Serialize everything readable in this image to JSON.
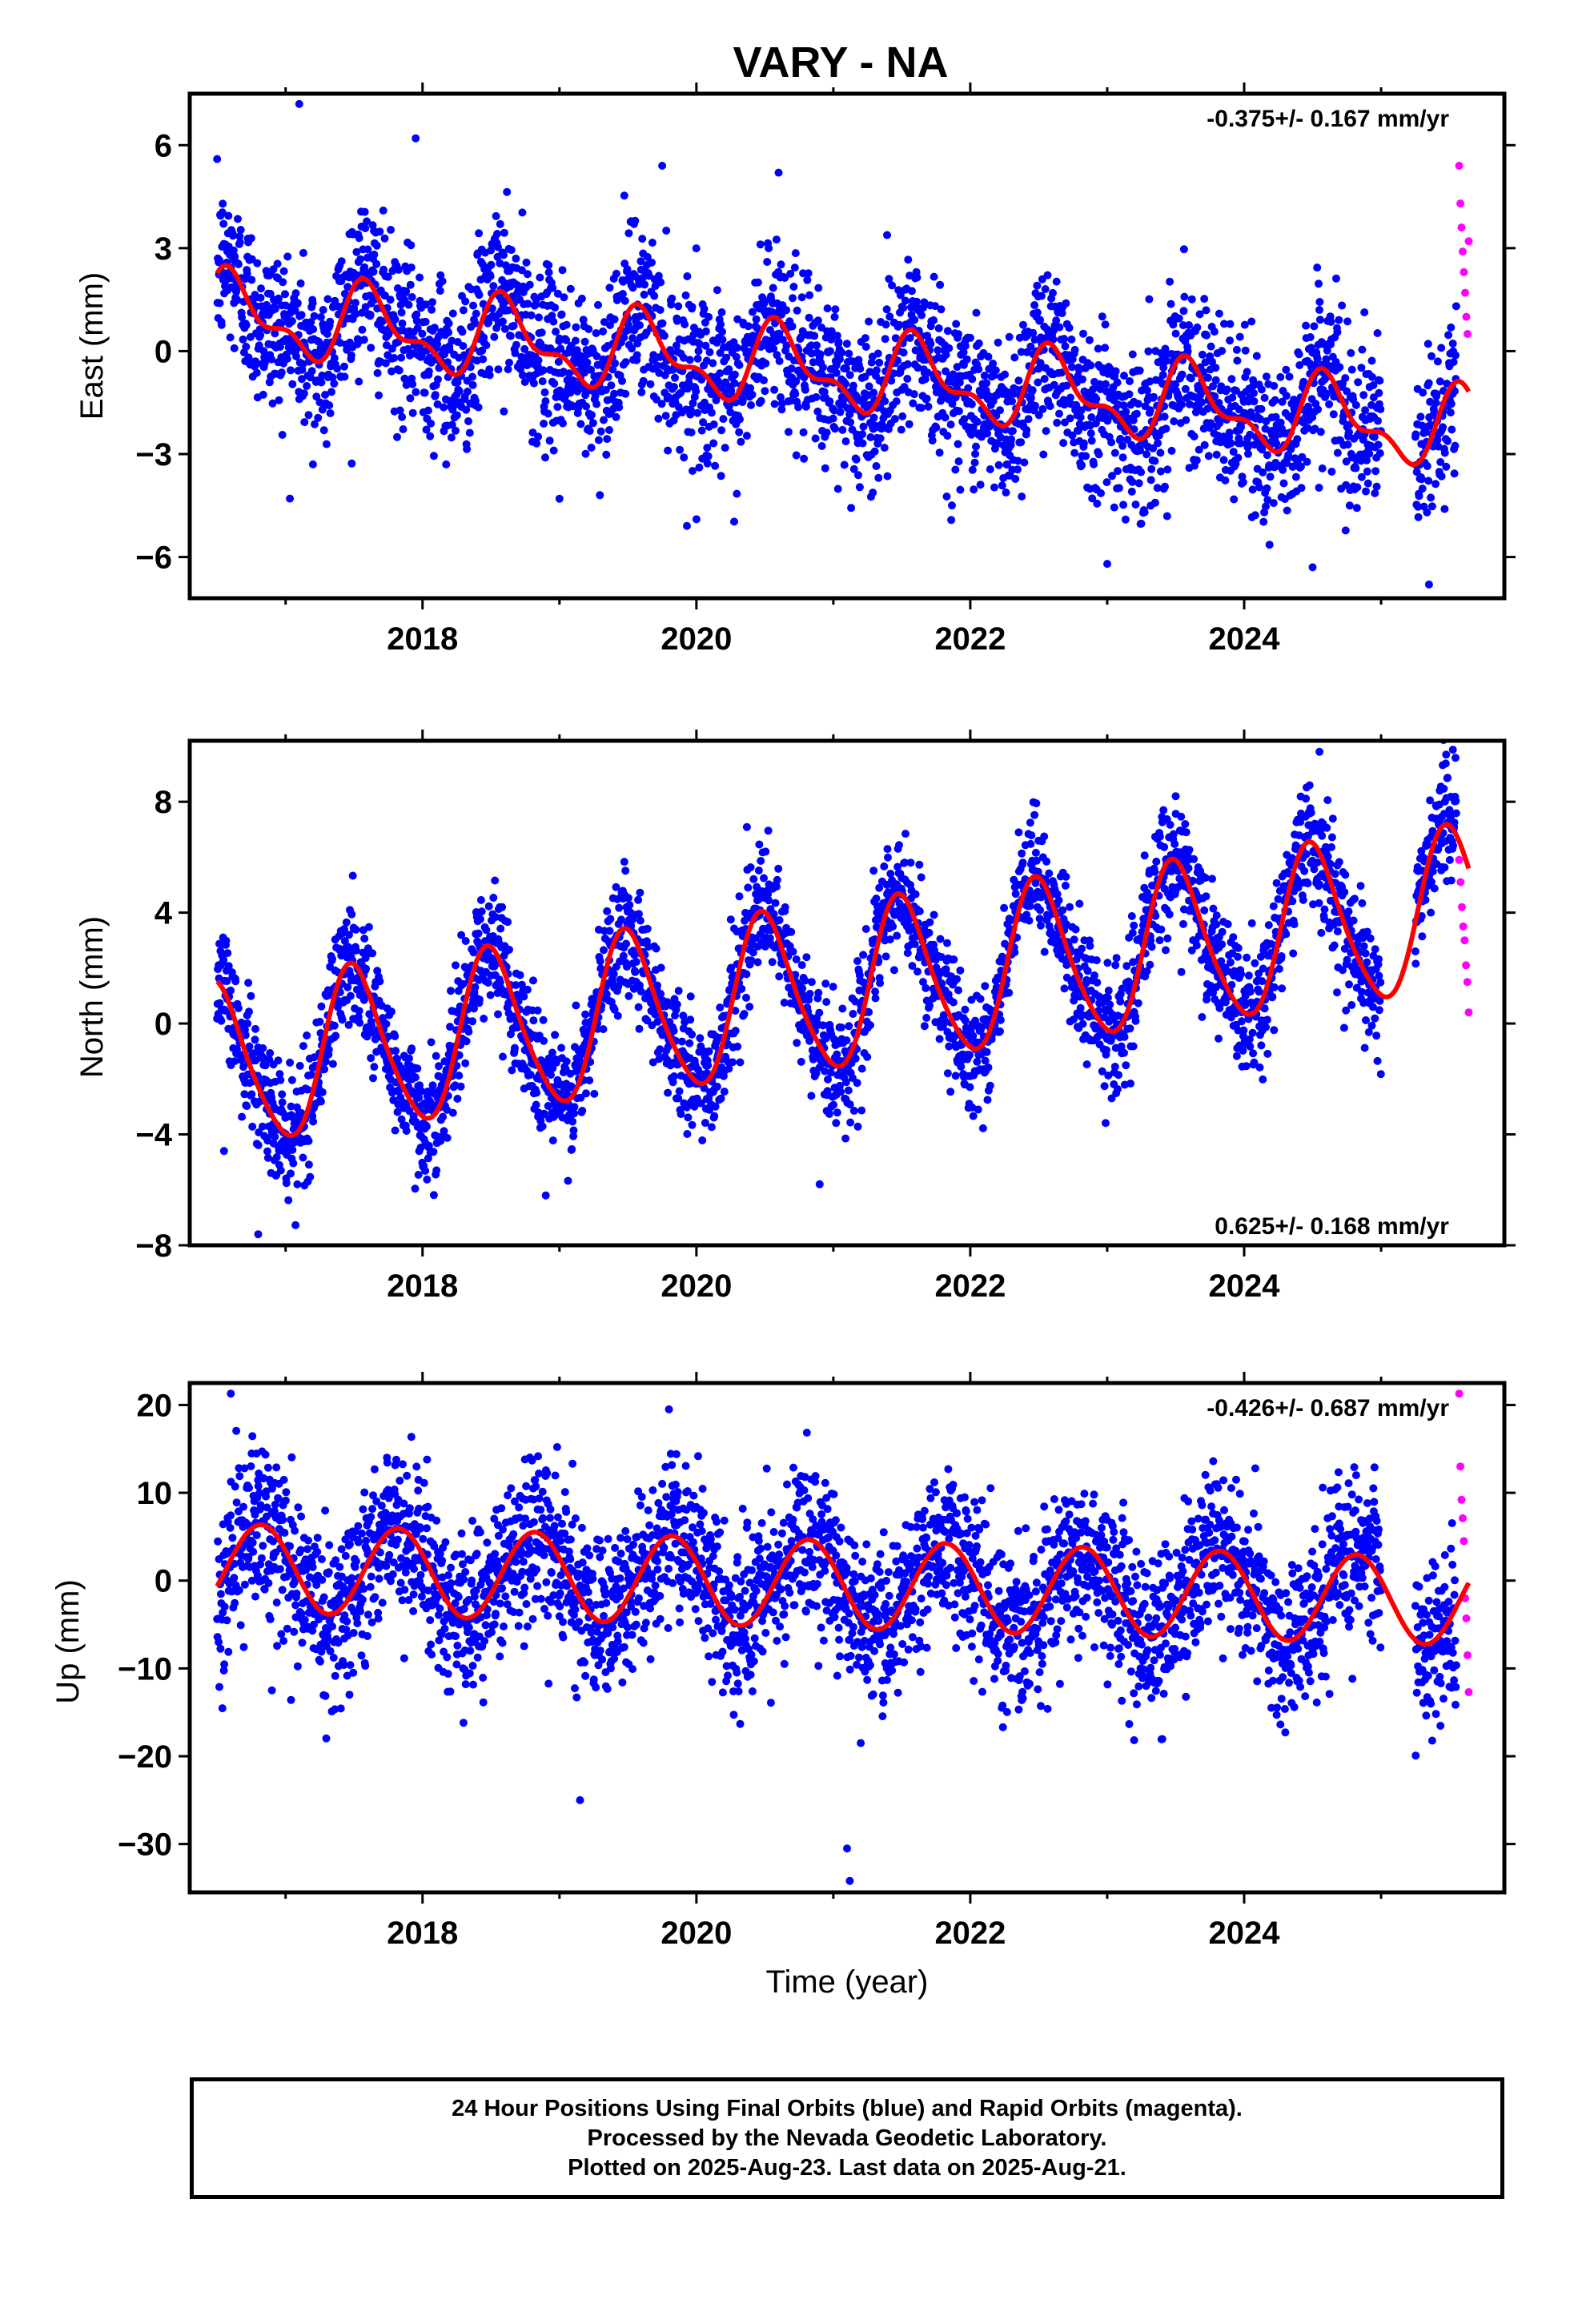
{
  "title": "VARY - NA",
  "xlabel": "Time (year)",
  "colors": {
    "final": "#0000ff",
    "rapid": "#ff00ff",
    "model": "#ff0000",
    "axis": "#000000"
  },
  "footer": {
    "line1": "24 Hour Positions Using Final Orbits (blue) and Rapid Orbits (magenta).",
    "line2": "Processed by the Nevada Geodetic Laboratory.",
    "line3": "Plotted on 2025-Aug-23. Last data on 2025-Aug-21."
  },
  "chart_data": [
    {
      "type": "scatter",
      "component": "east",
      "ylabel": "East (mm)",
      "rate": "-0.375+/- 0.167 mm/yr",
      "xlim": [
        2016.3,
        2025.9
      ],
      "ylim": [
        -7.2,
        7.5
      ],
      "xticks": [
        2018,
        2020,
        2022,
        2024
      ],
      "yticks": [
        -6,
        -3,
        0,
        3,
        6
      ],
      "x_range_data": [
        2016.5,
        2025.55
      ],
      "rapid_x_range": [
        2025.57,
        2025.64
      ],
      "trend": {
        "value_at_start": 1.1,
        "slope": -0.375
      },
      "annual": {
        "amplitude": 1.0,
        "peak_phase": 0.62
      },
      "semiannual": {
        "amplitude": 0.5
      },
      "noise_sd": 1.2,
      "outliers": [
        [
          2017.1,
          7.2
        ],
        [
          2017.95,
          6.2
        ],
        [
          2019.75,
          5.4
        ],
        [
          2020.6,
          5.2
        ],
        [
          2020.0,
          -4.9
        ],
        [
          2023.0,
          -6.2
        ],
        [
          2024.5,
          -6.3
        ],
        [
          2025.35,
          -6.8
        ],
        [
          2019.0,
          -4.3
        ],
        [
          2017.2,
          -3.3
        ]
      ],
      "rapid_values": [
        5.4,
        4.3,
        3.6,
        2.9,
        2.3,
        1.7,
        1.0,
        0.5,
        3.2
      ]
    },
    {
      "type": "scatter",
      "component": "north",
      "ylabel": "North (mm)",
      "rate": "0.625+/- 0.168 mm/yr",
      "xlim": [
        2016.3,
        2025.9
      ],
      "ylim": [
        -8.0,
        10.2
      ],
      "xticks": [
        2018,
        2020,
        2022,
        2024
      ],
      "yticks": [
        -8,
        -4,
        0,
        4,
        8
      ],
      "x_range_data": [
        2016.5,
        2025.55
      ],
      "rapid_x_range": [
        2025.57,
        2025.64
      ],
      "trend": {
        "value_at_start": -1.6,
        "slope": 0.625
      },
      "annual": {
        "amplitude": 2.9,
        "peak_phase": 0.5
      },
      "semiannual": {
        "amplitude": 0.4
      },
      "noise_sd": 1.1,
      "outliers": [
        [
          2016.55,
          -4.6
        ],
        [
          2016.8,
          -7.6
        ],
        [
          2024.55,
          9.8
        ],
        [
          2023.5,
          8.2
        ],
        [
          2020.9,
          -5.8
        ],
        [
          2018.9,
          -6.2
        ]
      ],
      "rapid_values": [
        5.9,
        5.1,
        4.2,
        3.5,
        3.0,
        2.1,
        1.5,
        0.4
      ]
    },
    {
      "type": "scatter",
      "component": "up",
      "ylabel": "Up (mm)",
      "rate": "-0.426+/- 0.687 mm/yr",
      "xlim": [
        2016.3,
        2025.9
      ],
      "ylim": [
        -35.5,
        22.5
      ],
      "xticks": [
        2018,
        2020,
        2022,
        2024
      ],
      "yticks": [
        -30,
        -20,
        -10,
        0,
        10,
        20
      ],
      "x_range_data": [
        2016.5,
        2025.55
      ],
      "rapid_x_range": [
        2025.57,
        2025.64
      ],
      "trend": {
        "value_at_start": 1.5,
        "slope": -0.426
      },
      "annual": {
        "amplitude": 5.0,
        "peak_phase": 0.82
      },
      "semiannual": {
        "amplitude": 0.0
      },
      "noise_sd": 4.5,
      "outliers": [
        [
          2016.6,
          21.3
        ],
        [
          2019.8,
          19.5
        ],
        [
          2019.15,
          -25.0
        ],
        [
          2021.1,
          -30.5
        ],
        [
          2021.12,
          -34.2
        ],
        [
          2021.2,
          -18.5
        ],
        [
          2016.9,
          -12.5
        ]
      ],
      "rapid_values": [
        21.3,
        13.0,
        9.2,
        7.1,
        4.5,
        -2.0,
        -4.3,
        -8.5,
        -12.7
      ]
    }
  ]
}
